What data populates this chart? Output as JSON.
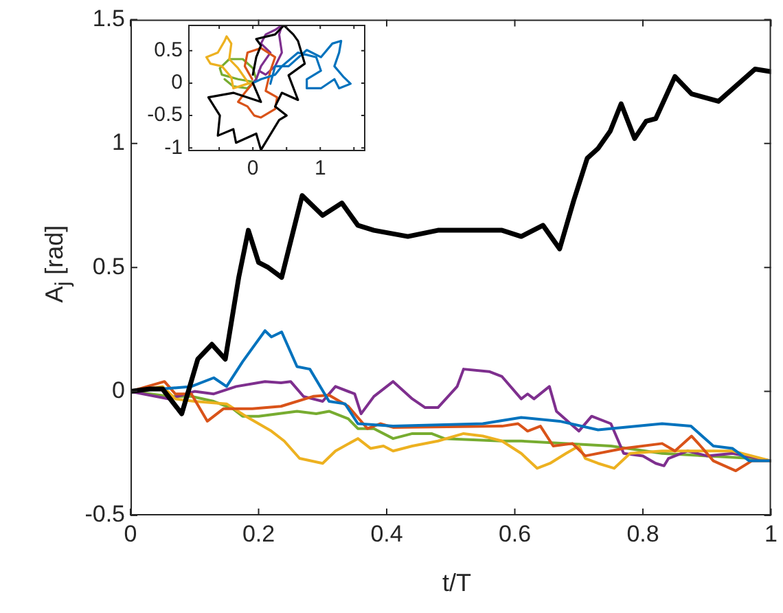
{
  "chart_data": [
    {
      "type": "line",
      "xlabel": "t/T",
      "ylabel": "A$_{j}$ [rad]",
      "xlim": [
        0,
        1
      ],
      "ylim": [
        -0.5,
        1.5
      ],
      "xticks": [
        0,
        0.2,
        0.4,
        0.6,
        0.8,
        1
      ],
      "yticks": [
        -0.5,
        0,
        0.5,
        1,
        1.5
      ],
      "line_style": "solid",
      "series": [
        {
          "color": "#000000",
          "x": [
            0,
            0.03,
            0.05,
            0.08,
            0.105,
            0.127,
            0.148,
            0.169,
            0.184,
            0.2,
            0.215,
            0.236,
            0.268,
            0.3,
            0.33,
            0.355,
            0.38,
            0.433,
            0.48,
            0.58,
            0.61,
            0.644,
            0.67,
            0.692,
            0.713,
            0.73,
            0.749,
            0.766,
            0.787,
            0.805,
            0.82,
            0.85,
            0.876,
            0.918,
            0.975,
            1
          ],
          "values": [
            0,
            0.01,
            0.01,
            -0.09,
            0.13,
            0.19,
            0.13,
            0.46,
            0.65,
            0.52,
            0.5,
            0.46,
            0.79,
            0.71,
            0.76,
            0.67,
            0.65,
            0.625,
            0.65,
            0.65,
            0.625,
            0.67,
            0.575,
            0.77,
            0.94,
            0.98,
            1.05,
            1.16,
            1.02,
            1.09,
            1.1,
            1.27,
            1.2,
            1.17,
            1.3,
            1.29
          ]
        },
        {
          "color": "#0072bd",
          "x": [
            0,
            0.095,
            0.13,
            0.15,
            0.175,
            0.21,
            0.22,
            0.236,
            0.26,
            0.28,
            0.31,
            0.335,
            0.355,
            0.41,
            0.55,
            0.61,
            0.67,
            0.73,
            0.83,
            0.875,
            0.91,
            0.94,
            0.966,
            1
          ],
          "values": [
            0,
            0.02,
            0.055,
            0.02,
            0.12,
            0.245,
            0.22,
            0.24,
            0.1,
            0.09,
            -0.04,
            -0.05,
            -0.13,
            -0.14,
            -0.13,
            -0.105,
            -0.12,
            -0.155,
            -0.13,
            -0.14,
            -0.22,
            -0.23,
            -0.28,
            -0.28
          ]
        },
        {
          "color": "#d95319",
          "x": [
            0,
            0.053,
            0.07,
            0.095,
            0.12,
            0.145,
            0.17,
            0.19,
            0.235,
            0.285,
            0.31,
            0.34,
            0.37,
            0.39,
            0.41,
            0.58,
            0.605,
            0.62,
            0.64,
            0.66,
            0.69,
            0.71,
            0.77,
            0.83,
            0.85,
            0.876,
            0.89,
            0.91,
            0.945,
            0.97,
            1
          ],
          "values": [
            0,
            0.04,
            -0.01,
            -0.01,
            -0.12,
            -0.07,
            -0.07,
            -0.07,
            -0.06,
            -0.02,
            -0.015,
            -0.06,
            -0.15,
            -0.13,
            -0.145,
            -0.14,
            -0.13,
            -0.16,
            -0.14,
            -0.22,
            -0.21,
            -0.26,
            -0.23,
            -0.21,
            -0.24,
            -0.18,
            -0.22,
            -0.28,
            -0.32,
            -0.28,
            -0.28
          ]
        },
        {
          "color": "#edb120",
          "x": [
            0,
            0.05,
            0.07,
            0.1,
            0.15,
            0.18,
            0.22,
            0.24,
            0.264,
            0.3,
            0.32,
            0.355,
            0.375,
            0.395,
            0.41,
            0.44,
            0.48,
            0.52,
            0.55,
            0.58,
            0.61,
            0.635,
            0.655,
            0.68,
            0.7,
            0.71,
            0.73,
            0.755,
            0.78,
            0.83,
            0.9,
            0.94,
            1
          ],
          "values": [
            0,
            0.02,
            -0.03,
            -0.04,
            -0.05,
            -0.1,
            -0.16,
            -0.2,
            -0.27,
            -0.29,
            -0.24,
            -0.19,
            -0.23,
            -0.22,
            -0.24,
            -0.22,
            -0.2,
            -0.17,
            -0.18,
            -0.2,
            -0.25,
            -0.31,
            -0.29,
            -0.25,
            -0.22,
            -0.27,
            -0.29,
            -0.31,
            -0.25,
            -0.24,
            -0.24,
            -0.24,
            -0.28
          ]
        },
        {
          "color": "#7e2f8e",
          "x": [
            0,
            0.06,
            0.1,
            0.13,
            0.165,
            0.21,
            0.235,
            0.25,
            0.27,
            0.3,
            0.32,
            0.35,
            0.36,
            0.38,
            0.41,
            0.44,
            0.46,
            0.48,
            0.51,
            0.52,
            0.56,
            0.58,
            0.61,
            0.62,
            0.63,
            0.654,
            0.665,
            0.7,
            0.72,
            0.75,
            0.77,
            0.8,
            0.82,
            0.833,
            0.84,
            0.87,
            0.9,
            0.94,
            1
          ],
          "values": [
            0,
            -0.03,
            0,
            -0.01,
            0.02,
            0.04,
            0.035,
            0.04,
            -0.02,
            -0.04,
            0.02,
            -0.01,
            -0.09,
            -0.02,
            0.04,
            -0.03,
            -0.065,
            -0.065,
            0.02,
            0.09,
            0.08,
            0.06,
            -0.03,
            -0.01,
            -0.03,
            0.02,
            -0.08,
            -0.16,
            -0.1,
            -0.13,
            -0.25,
            -0.26,
            -0.29,
            -0.3,
            -0.27,
            -0.24,
            -0.26,
            -0.25,
            -0.28
          ]
        },
        {
          "color": "#77ac30",
          "x": [
            0,
            0.06,
            0.095,
            0.13,
            0.16,
            0.175,
            0.2,
            0.26,
            0.29,
            0.31,
            0.34,
            0.355,
            0.38,
            0.41,
            0.44,
            0.47,
            0.49,
            0.58,
            0.61,
            0.75,
            0.83,
            0.97,
            1
          ],
          "values": [
            0,
            -0.02,
            -0.02,
            -0.04,
            -0.07,
            -0.1,
            -0.1,
            -0.08,
            -0.09,
            -0.08,
            -0.11,
            -0.15,
            -0.15,
            -0.19,
            -0.17,
            -0.17,
            -0.19,
            -0.2,
            -0.2,
            -0.22,
            -0.25,
            -0.27,
            -0.28
          ]
        }
      ]
    },
    {
      "type": "line",
      "xlim": [
        -0.96,
        1.67
      ],
      "ylim": [
        -1.05,
        0.9
      ],
      "xticks": [
        {
          "value": -0.5,
          "label": null
        },
        0,
        {
          "value": 0.5,
          "label": null
        },
        1,
        {
          "value": 1.5,
          "label": null
        }
      ],
      "yticks": [
        -1,
        -0.5,
        0,
        0.5
      ],
      "line_style": "solid",
      "series": [
        {
          "color": "#000000",
          "x": [
            0,
            0.12,
            -0.29,
            -0.66,
            -0.49,
            -0.52,
            -0.29,
            -0.25,
            0.05,
            0.12,
            0.39,
            0.5,
            0.33,
            0.43,
            0.67,
            0.53,
            0.77,
            0.67,
            0.6,
            0.46,
            0.33,
            0.05,
            0.12,
            0.05,
            0
          ],
          "values": [
            0,
            -0.29,
            -0.15,
            -0.22,
            -0.5,
            -0.81,
            -0.71,
            -0.92,
            -0.78,
            -1.03,
            -0.57,
            -0.5,
            -0.36,
            -0.15,
            -0.26,
            0.12,
            0.3,
            0.65,
            0.75,
            0.89,
            0.75,
            0.68,
            0.58,
            0.4,
            0.13
          ]
        },
        {
          "color": "#0072bd",
          "x": [
            0,
            0.12,
            0.33,
            0.43,
            0.67,
            0.94,
            1.01,
            0.8,
            0.8,
            1.01,
            1.21,
            1.28,
            1.45,
            1.35,
            1.21,
            1.28,
            1.31,
            1.18,
            1.01,
            0.8,
            0.53,
            0.33,
            0.26
          ],
          "values": [
            0,
            0.06,
            0.13,
            0.26,
            0.47,
            0.4,
            0.19,
            0.06,
            -0.08,
            -0.08,
            0.06,
            -0.08,
            -0.01,
            0.09,
            0.26,
            0.47,
            0.65,
            0.61,
            0.4,
            0.51,
            0.26,
            0.26,
            -0.01
          ]
        },
        {
          "color": "#d95319",
          "x": [
            0,
            -0.12,
            -0.22,
            -0.08,
            0.02,
            0.12,
            0.33,
            0.36,
            0.19,
            0.26,
            0.33,
            0.12,
            -0.08,
            -0.12,
            -0.01
          ],
          "values": [
            0,
            -0.15,
            -0.29,
            -0.36,
            -0.5,
            -0.53,
            -0.4,
            -0.22,
            -0.12,
            0.19,
            0.4,
            0.54,
            0.47,
            0.26,
            0.06
          ]
        },
        {
          "color": "#edb120",
          "x": [
            0,
            -0.08,
            -0.29,
            -0.32,
            -0.46,
            -0.63,
            -0.69,
            -0.52,
            -0.42,
            -0.39,
            -0.32,
            -0.35,
            -0.22,
            -0.08
          ],
          "values": [
            0,
            -0.01,
            -0.08,
            0.09,
            0.26,
            0.3,
            0.4,
            0.47,
            0.65,
            0.72,
            0.61,
            0.37,
            0.23,
            0.02
          ]
        },
        {
          "color": "#7e2f8e",
          "x": [
            0,
            0.05,
            0.12,
            0.26,
            0.12,
            0.19,
            0.33,
            0.43,
            0.39,
            0.43,
            0.33,
            0.19,
            0.09
          ],
          "values": [
            0,
            0.06,
            0.26,
            0.47,
            0.61,
            0.75,
            0.82,
            0.89,
            0.75,
            0.47,
            0.26,
            0.13,
            0.19
          ]
        },
        {
          "color": "#77ac30",
          "x": [
            0,
            -0.22,
            -0.46,
            -0.49,
            -0.35,
            -0.15,
            0,
            0.05,
            -0.08,
            -0.29,
            -0.42
          ],
          "values": [
            0.02,
            0.06,
            0.13,
            0.23,
            0.37,
            0.37,
            0.23,
            0.06,
            -0.08,
            -0.05,
            0.06
          ]
        }
      ]
    }
  ]
}
